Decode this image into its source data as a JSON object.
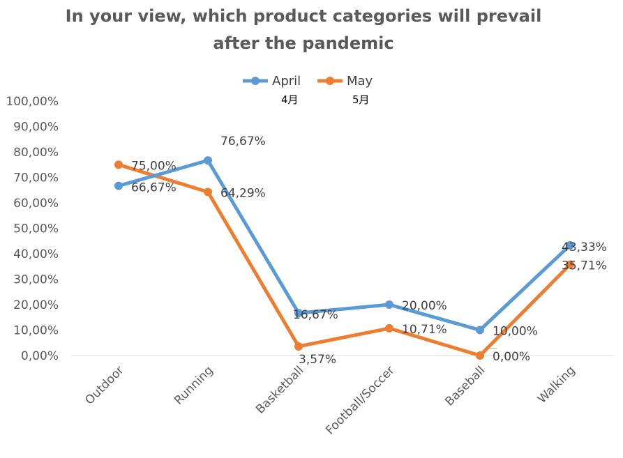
{
  "chart_data": {
    "type": "line",
    "title": [
      "In your view, which product categories will prevail",
      "after the pandemic"
    ],
    "categories": [
      "Outdoor",
      "Running",
      "Basketball",
      "Football/Soccer",
      "Baseball",
      "Walking"
    ],
    "series": [
      {
        "name": "April",
        "subtitle": "4月",
        "color": "#5B9BD5",
        "values": [
          66.67,
          76.67,
          16.67,
          20.0,
          10.0,
          43.33
        ],
        "labels": [
          "66,67%",
          "76,67%",
          "16,67%",
          "20,00%",
          "10,00%",
          "43,33%"
        ]
      },
      {
        "name": "May",
        "subtitle": "5月",
        "color": "#ED7D31",
        "values": [
          75.0,
          64.29,
          3.57,
          10.71,
          0.0,
          35.71
        ],
        "labels": [
          "75,00%",
          "64,29%",
          "3,57%",
          "10,71%",
          "0,00%",
          "35,71%"
        ]
      }
    ],
    "yaxis": {
      "min": 0,
      "max": 100,
      "ticks": [
        "0,00%",
        "10,00%",
        "20,00%",
        "30,00%",
        "40,00%",
        "50,00%",
        "60,00%",
        "70,00%",
        "80,00%",
        "90,00%",
        "100,00%"
      ]
    },
    "legend_position": "top",
    "grid": false
  }
}
